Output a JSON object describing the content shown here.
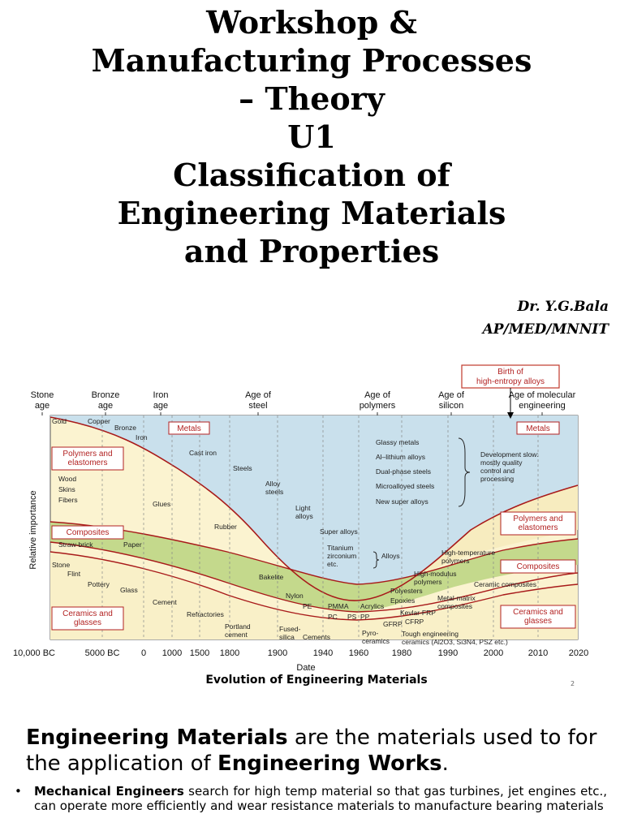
{
  "title": {
    "lines": [
      "Workshop &",
      "Manufacturing Processes",
      "– Theory",
      "U1",
      "Classification of",
      "Engineering Materials",
      "and Properties"
    ]
  },
  "author": {
    "name": "Dr. Y.G.Bala",
    "affiliation": "AP/MED/MNNIT"
  },
  "figure": {
    "ages": [
      "Stone\nage",
      "Bronze\nage",
      "Iron\nage",
      "Age of\nsteel",
      "Age of\npolymers",
      "Age of\nsilicon",
      "Age of molecular\nengineering"
    ],
    "callout": "Birth of\nhigh-entropy alloys",
    "y_axis_label": "Relative importance",
    "x_axis_label": "Date",
    "x_ticks": [
      "10,000 BC",
      "5000 BC",
      "0",
      "1000",
      "1500",
      "1800",
      "1900",
      "1940",
      "1960",
      "1980",
      "1990",
      "2000",
      "2010",
      "2020"
    ],
    "region_labels": {
      "metals_left": "Metals",
      "polymers_left": "Polymers and\nelastomers",
      "composites_left": "Composites",
      "ceramics_left": "Ceramics and\nglasses",
      "metals_right": "Metals",
      "polymers_right": "Polymers and\nelastomers",
      "composites_right": "Composites",
      "ceramics_right": "Ceramics and\nglasses"
    },
    "annotations": [
      "Gold",
      "Copper",
      "Bronze",
      "Iron",
      "Cast iron",
      "Steels",
      "Alloy\nsteels",
      "Light\nalloys",
      "Super alloys",
      "Titanium\nzirconium\netc.",
      "Alloys",
      "Wood",
      "Skins",
      "Fibers",
      "Glues",
      "Rubber",
      "Straw-brick",
      "Paper",
      "Stone",
      "Flint",
      "Pottery",
      "Glass",
      "Cement",
      "Refractories",
      "Portland\ncement",
      "Bakelite",
      "Nylon",
      "PE",
      "Fused-\nsilica",
      "Cements",
      "PMMA",
      "Acrylics",
      "PC",
      "PS",
      "PP",
      "Polyesters",
      "Epoxies",
      "GFRP",
      "CFRP",
      "Pyro-\nceramics",
      "Tough engineering\nceramics (Al2O3, Si3N4, PSZ etc.)",
      "Kevlar-FRP",
      "Metal-matrix\ncomposites",
      "Ceramic composites",
      "High-modulus\npolymers",
      "High-temperature\npolymers",
      "Glassy metals",
      "Al–lithium alloys",
      "Dual-phase steels",
      "Microalloyed steels",
      "New super alloys",
      "Development slow:\nmostly quality\ncontrol and\nprocessing"
    ],
    "caption": "Evolution of Engineering Materials",
    "slide_number": "2",
    "colors": {
      "metals": "#c9e0ec",
      "polymers": "#f7ecbf",
      "composites": "#c4d98c",
      "ceramics": "#f9f0c8",
      "boundary": "#a81a1a"
    }
  },
  "intro": {
    "term": "Engineering Materials",
    "middle": " are the materials used to for the application of ",
    "term2": "Engineering Works",
    "end": "."
  },
  "bullets": [
    {
      "lead": "Mechanical Engineers",
      "text": " search for high temp material so that gas turbines, jet engines etc., can operate more efficiently and wear resistance materials to manufacture bearing materials"
    }
  ]
}
